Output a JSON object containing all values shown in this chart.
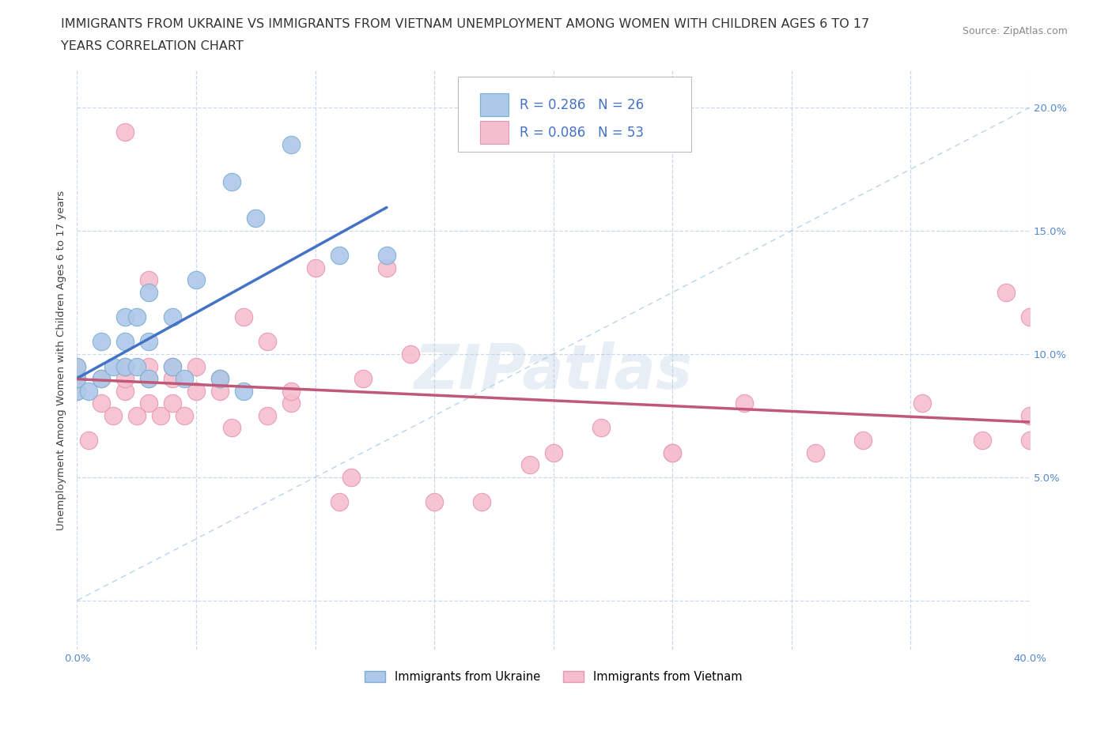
{
  "title_line1": "IMMIGRANTS FROM UKRAINE VS IMMIGRANTS FROM VIETNAM UNEMPLOYMENT AMONG WOMEN WITH CHILDREN AGES 6 TO 17",
  "title_line2": "YEARS CORRELATION CHART",
  "source": "Source: ZipAtlas.com",
  "ylabel": "Unemployment Among Women with Children Ages 6 to 17 years",
  "xlim": [
    0.0,
    0.4
  ],
  "ylim": [
    -0.02,
    0.215
  ],
  "ukraine_color": "#adc8e8",
  "ukraine_edge": "#7aafd4",
  "ukraine_line_color": "#4472c4",
  "vietnam_color": "#f5bece",
  "vietnam_edge": "#e896b0",
  "vietnam_line_color": "#c05878",
  "diagonal_color": "#a8c8e8",
  "R_ukraine": 0.286,
  "N_ukraine": 26,
  "R_vietnam": 0.086,
  "N_vietnam": 53,
  "ukraine_x": [
    0.0,
    0.0,
    0.0,
    0.005,
    0.01,
    0.01,
    0.015,
    0.02,
    0.02,
    0.02,
    0.025,
    0.025,
    0.03,
    0.03,
    0.03,
    0.04,
    0.04,
    0.045,
    0.05,
    0.06,
    0.065,
    0.07,
    0.075,
    0.09,
    0.11,
    0.13
  ],
  "ukraine_y": [
    0.085,
    0.09,
    0.095,
    0.085,
    0.09,
    0.105,
    0.095,
    0.095,
    0.105,
    0.115,
    0.095,
    0.115,
    0.09,
    0.105,
    0.125,
    0.095,
    0.115,
    0.09,
    0.13,
    0.09,
    0.17,
    0.085,
    0.155,
    0.185,
    0.14,
    0.14
  ],
  "vietnam_x": [
    0.0,
    0.0,
    0.0,
    0.005,
    0.01,
    0.01,
    0.015,
    0.02,
    0.02,
    0.02,
    0.02,
    0.025,
    0.03,
    0.03,
    0.03,
    0.03,
    0.035,
    0.04,
    0.04,
    0.04,
    0.045,
    0.05,
    0.05,
    0.06,
    0.06,
    0.065,
    0.07,
    0.08,
    0.08,
    0.09,
    0.09,
    0.1,
    0.11,
    0.115,
    0.12,
    0.13,
    0.14,
    0.15,
    0.17,
    0.19,
    0.2,
    0.22,
    0.25,
    0.25,
    0.28,
    0.31,
    0.33,
    0.355,
    0.38,
    0.39,
    0.4,
    0.4,
    0.4
  ],
  "vietnam_y": [
    0.085,
    0.09,
    0.095,
    0.065,
    0.08,
    0.09,
    0.075,
    0.085,
    0.09,
    0.095,
    0.19,
    0.075,
    0.08,
    0.09,
    0.095,
    0.13,
    0.075,
    0.08,
    0.09,
    0.095,
    0.075,
    0.085,
    0.095,
    0.085,
    0.09,
    0.07,
    0.115,
    0.075,
    0.105,
    0.08,
    0.085,
    0.135,
    0.04,
    0.05,
    0.09,
    0.135,
    0.1,
    0.04,
    0.04,
    0.055,
    0.06,
    0.07,
    0.06,
    0.06,
    0.08,
    0.06,
    0.065,
    0.08,
    0.065,
    0.125,
    0.065,
    0.075,
    0.115
  ],
  "watermark": "ZIPatlas",
  "background_color": "#ffffff",
  "grid_color": "#ccd9e8",
  "title_fontsize": 11.5,
  "source_fontsize": 9,
  "axis_label_fontsize": 9.5,
  "tick_fontsize": 9.5,
  "legend_fontsize": 12
}
